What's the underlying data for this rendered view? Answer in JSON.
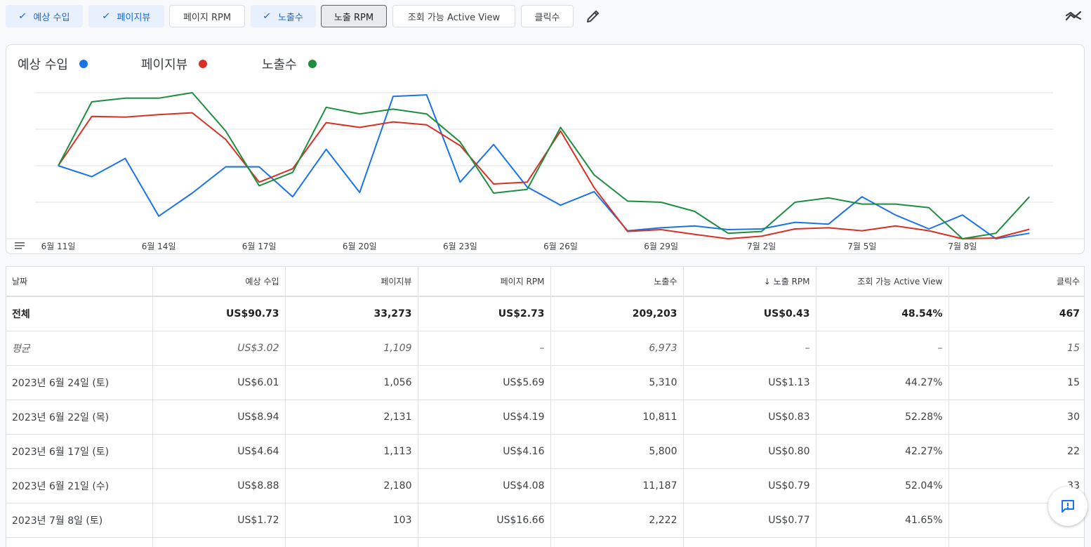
{
  "toolbar": {
    "chips": [
      {
        "label": "예상 수입",
        "state": "on"
      },
      {
        "label": "페이지뷰",
        "state": "on"
      },
      {
        "label": "페이지 RPM",
        "state": "off"
      },
      {
        "label": "노출수",
        "state": "on"
      },
      {
        "label": "노출 RPM",
        "state": "pressed"
      },
      {
        "label": "조회 가능 Active View",
        "state": "off"
      },
      {
        "label": "클릭수",
        "state": "off"
      }
    ],
    "check_glyph": "✓",
    "edit_icon": "pencil-icon",
    "trend_icon": "trend-icon"
  },
  "colors": {
    "revenue": "#1a73e8",
    "pageviews": "#d93025",
    "impressions": "#1e8e3e"
  },
  "chart_data": {
    "type": "line",
    "legend_position": "top-left",
    "grid": true,
    "x_ticks": [
      "6월 11일",
      "6월 14일",
      "6월 17일",
      "6월 20일",
      "6월 23일",
      "6월 26일",
      "6월 29일",
      "7월 2일",
      "7월 5일",
      "7월 8일"
    ],
    "series": [
      {
        "name": "예상 수입",
        "key": "revenue",
        "values": [
          2.0,
          1.7,
          2.2,
          0.62,
          1.25,
          1.97,
          1.97,
          1.15,
          2.45,
          1.27,
          3.9,
          3.94,
          1.55,
          2.58,
          1.42,
          0.92,
          1.29,
          0.22,
          0.3,
          0.35,
          0.25,
          0.27,
          0.45,
          0.4,
          1.15,
          0.65,
          0.27,
          0.65,
          0.0,
          0.15
        ]
      },
      {
        "name": "페이지뷰",
        "key": "pageviews",
        "values": [
          2.0,
          3.35,
          3.33,
          3.4,
          3.45,
          2.72,
          1.55,
          1.92,
          3.18,
          3.05,
          3.2,
          3.12,
          2.55,
          1.5,
          1.55,
          2.95,
          1.4,
          0.2,
          0.25,
          0.12,
          0.0,
          0.07,
          0.27,
          0.3,
          0.22,
          0.35,
          0.22,
          0.0,
          0.02,
          0.26
        ]
      },
      {
        "name": "노출수",
        "key": "impressions",
        "values": [
          2.0,
          3.75,
          3.85,
          3.85,
          4.0,
          2.95,
          1.45,
          1.82,
          3.6,
          3.42,
          3.55,
          3.42,
          2.65,
          1.25,
          1.35,
          3.05,
          1.75,
          1.03,
          1.0,
          0.75,
          0.15,
          0.2,
          1.0,
          1.12,
          0.95,
          0.95,
          0.85,
          0.0,
          0.15,
          1.15
        ]
      }
    ]
  },
  "table": {
    "columns": [
      {
        "label": "날짜",
        "align": "l"
      },
      {
        "label": "예상 수입",
        "align": "r"
      },
      {
        "label": "페이지뷰",
        "align": "r"
      },
      {
        "label": "페이지 RPM",
        "align": "r"
      },
      {
        "label": "노출수",
        "align": "r"
      },
      {
        "label": "↓ 노출 RPM",
        "align": "r"
      },
      {
        "label": "조회 가능 Active View",
        "align": "r"
      },
      {
        "label": "클릭수",
        "align": "r"
      }
    ],
    "rows": [
      {
        "kind": "total",
        "cells": [
          "전체",
          "US$90.73",
          "33,273",
          "US$2.73",
          "209,203",
          "US$0.43",
          "48.54%",
          "467"
        ]
      },
      {
        "kind": "avg",
        "cells": [
          "평균",
          "US$3.02",
          "1,109",
          "–",
          "6,973",
          "–",
          "–",
          "15"
        ]
      },
      {
        "kind": "data",
        "cells": [
          "2023년 6월 24일 (토)",
          "US$6.01",
          "1,056",
          "US$5.69",
          "5,310",
          "US$1.13",
          "44.27%",
          "15"
        ]
      },
      {
        "kind": "data",
        "cells": [
          "2023년 6월 22일 (목)",
          "US$8.94",
          "2,131",
          "US$4.19",
          "10,811",
          "US$0.83",
          "52.28%",
          "30"
        ]
      },
      {
        "kind": "data",
        "cells": [
          "2023년 6월 17일 (토)",
          "US$4.64",
          "1,113",
          "US$4.16",
          "5,800",
          "US$0.80",
          "42.27%",
          "22"
        ]
      },
      {
        "kind": "data",
        "cells": [
          "2023년 6월 21일 (수)",
          "US$8.88",
          "2,180",
          "US$4.08",
          "11,187",
          "US$0.79",
          "52.04%",
          "33"
        ]
      },
      {
        "kind": "data",
        "cells": [
          "2023년 7월 8일 (토)",
          "US$1.72",
          "103",
          "US$16.66",
          "2,222",
          "US$0.77",
          "41.65%",
          ""
        ]
      },
      {
        "kind": "data",
        "cells": [
          "",
          "",
          "",
          "",
          "",
          "",
          "",
          ""
        ]
      }
    ]
  },
  "feedback_icon": "feedback-icon"
}
